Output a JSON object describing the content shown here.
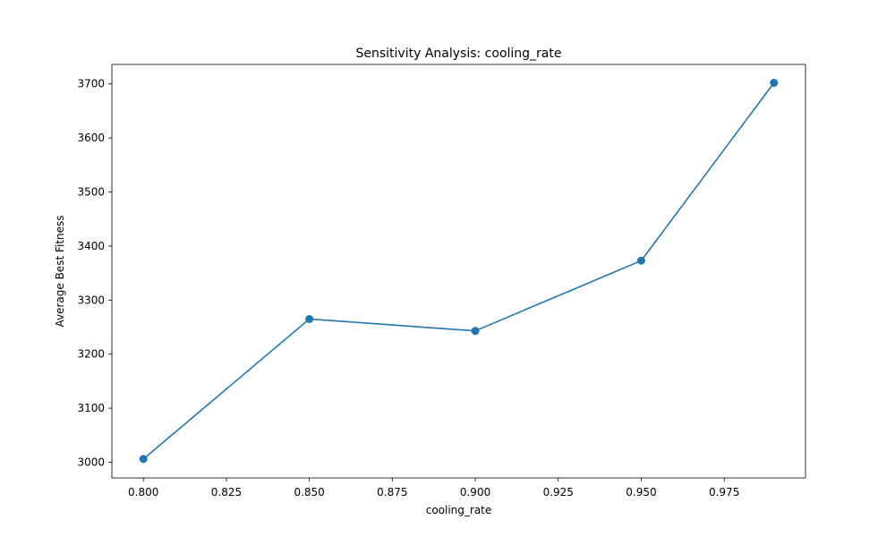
{
  "chart_data": {
    "type": "line",
    "title": "Sensitivity Analysis: cooling_rate",
    "xlabel": "cooling_rate",
    "ylabel": "Average Best Fitness",
    "xlim": [
      0.7905,
      0.9995
    ],
    "ylim": [
      2971,
      3736
    ],
    "xticks": [
      0.8,
      0.825,
      0.85,
      0.875,
      0.9,
      0.925,
      0.95,
      0.975
    ],
    "xtick_labels": [
      "0.800",
      "0.825",
      "0.850",
      "0.875",
      "0.900",
      "0.925",
      "0.950",
      "0.975"
    ],
    "yticks": [
      3000,
      3100,
      3200,
      3300,
      3400,
      3500,
      3600,
      3700
    ],
    "ytick_labels": [
      "3000",
      "3100",
      "3200",
      "3300",
      "3400",
      "3500",
      "3600",
      "3700"
    ],
    "grid": false,
    "series": [
      {
        "x": [
          0.8,
          0.85,
          0.9,
          0.95,
          0.99
        ],
        "y": [
          3006,
          3265,
          3243,
          3373,
          3702
        ],
        "color": "#1f77b4",
        "marker": "circle"
      }
    ]
  }
}
